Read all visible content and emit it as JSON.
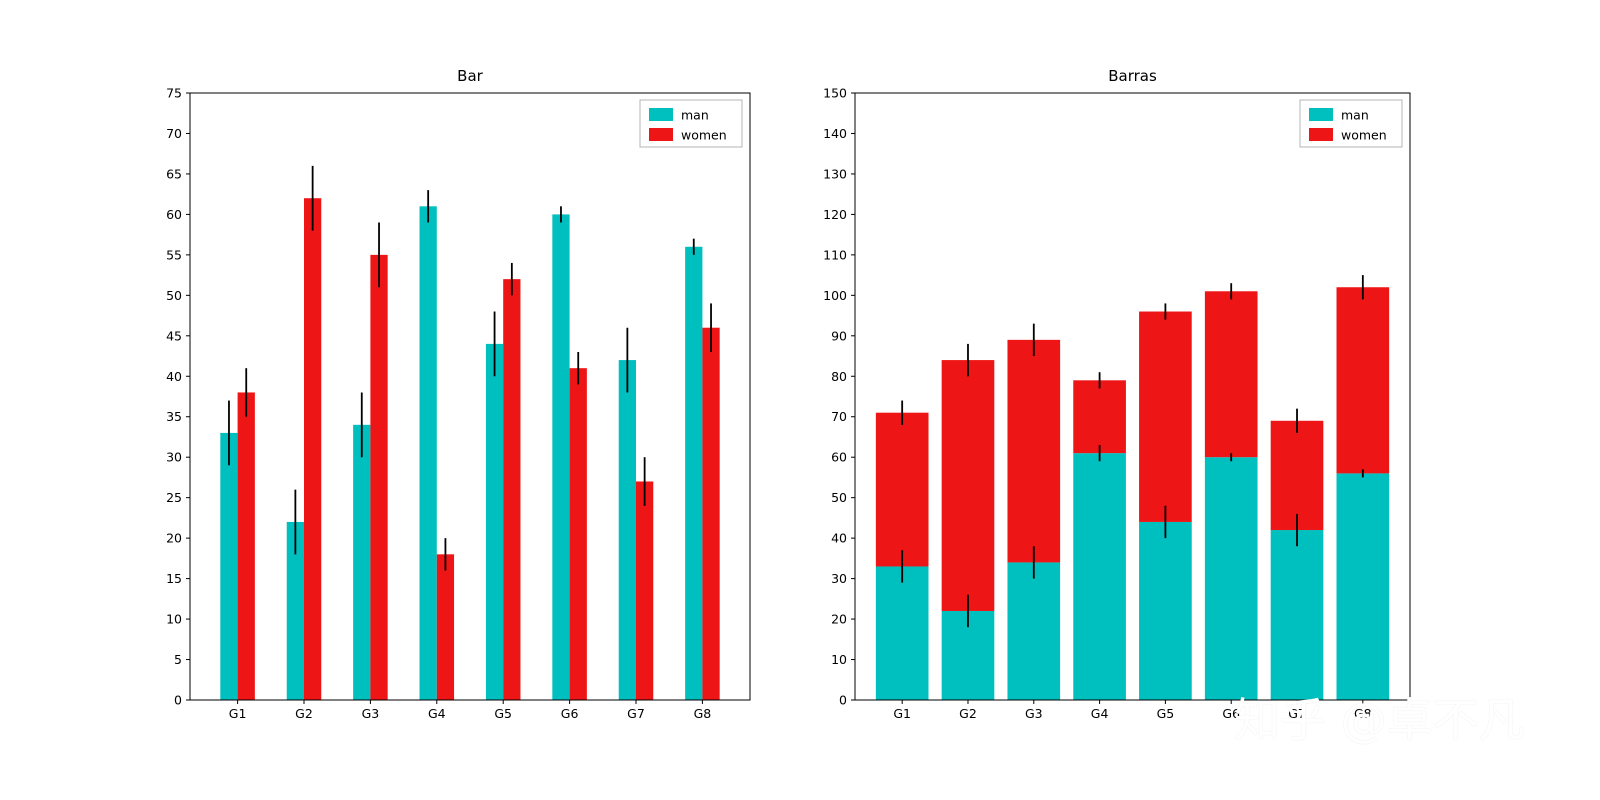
{
  "watermark": "知乎 @卓不凡",
  "colors": {
    "man": "#00bfbf",
    "women": "#ed1515",
    "axis": "#000000",
    "legend_border": "#b5b5b5",
    "background": "#ffffff"
  },
  "chart_data": [
    {
      "type": "bar",
      "variant": "grouped",
      "title": "Bar",
      "categories": [
        "G1",
        "G2",
        "G3",
        "G4",
        "G5",
        "G6",
        "G7",
        "G8"
      ],
      "series": [
        {
          "name": "man",
          "color": "#00bfbf",
          "values": [
            33,
            22,
            34,
            61,
            44,
            60,
            42,
            56
          ],
          "errors": [
            4,
            4,
            4,
            2,
            4,
            1,
            4,
            1
          ]
        },
        {
          "name": "women",
          "color": "#ed1515",
          "values": [
            38,
            62,
            55,
            18,
            52,
            41,
            27,
            46
          ],
          "errors": [
            3,
            4,
            4,
            2,
            2,
            2,
            3,
            3
          ]
        }
      ],
      "ylim": [
        0,
        75
      ],
      "ytick_step": 5,
      "grid": false,
      "legend_position": "upper right"
    },
    {
      "type": "bar",
      "variant": "stacked",
      "title": "Barras",
      "categories": [
        "G1",
        "G2",
        "G3",
        "G4",
        "G5",
        "G6",
        "G7",
        "G8"
      ],
      "series": [
        {
          "name": "man",
          "color": "#00bfbf",
          "values": [
            33,
            22,
            34,
            61,
            44,
            60,
            42,
            56
          ],
          "errors": [
            4,
            4,
            4,
            2,
            4,
            1,
            4,
            1
          ]
        },
        {
          "name": "women",
          "color": "#ed1515",
          "values": [
            38,
            62,
            55,
            18,
            52,
            41,
            27,
            46
          ],
          "errors": [
            3,
            4,
            4,
            2,
            2,
            2,
            3,
            3
          ]
        }
      ],
      "stacked_totals": [
        71,
        84,
        89,
        79,
        96,
        101,
        69,
        102
      ],
      "ylim": [
        0,
        150
      ],
      "ytick_step": 10,
      "grid": false,
      "legend_position": "upper right"
    }
  ]
}
